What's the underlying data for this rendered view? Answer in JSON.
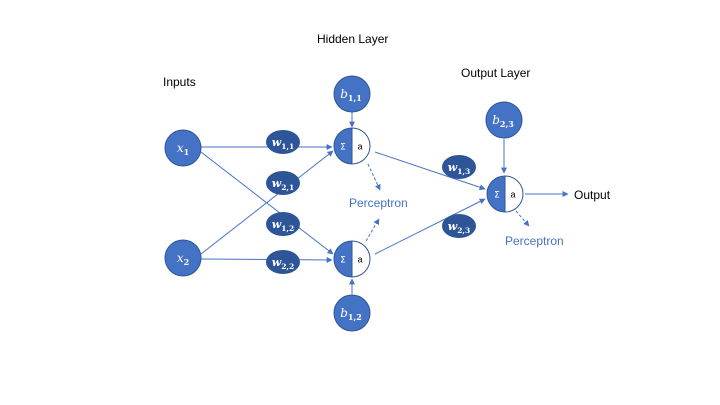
{
  "labels": {
    "hidden_layer": "Hidden Layer",
    "inputs": "Inputs",
    "output_layer": "Output Layer",
    "output": "Output",
    "perceptron_hidden": "Perceptron",
    "perceptron_output": "Perceptron"
  },
  "nodes": {
    "x1": {
      "base": "x",
      "sub": "1"
    },
    "x2": {
      "base": "x",
      "sub": "2"
    },
    "b11": {
      "base": "b",
      "sub": "1,1"
    },
    "b12": {
      "base": "b",
      "sub": "1,2"
    },
    "b23": {
      "base": "b",
      "sub": "2,3"
    }
  },
  "weights": {
    "w11": {
      "base": "w",
      "sub": "1,1"
    },
    "w21": {
      "base": "w",
      "sub": "2,1"
    },
    "w12": {
      "base": "w",
      "sub": "1,2"
    },
    "w22": {
      "base": "w",
      "sub": "2,2"
    },
    "w13": {
      "base": "w",
      "sub": "1,3"
    },
    "w23": {
      "base": "w",
      "sub": "2,3"
    }
  },
  "neuron": {
    "sum_symbol": "Σ",
    "activation": "a"
  },
  "colors": {
    "node_fill": "#4472c4",
    "node_stroke": "#2f5597",
    "weight_fill": "#2e5597",
    "line": "#4472c4",
    "text_blue": "#4472c4"
  }
}
